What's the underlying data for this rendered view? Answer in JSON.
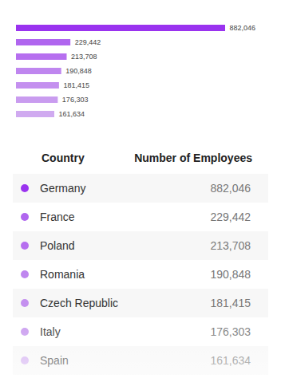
{
  "chart_data": {
    "type": "bar",
    "orientation": "horizontal",
    "categories": [
      "Germany",
      "France",
      "Poland",
      "Romania",
      "Czech Republic",
      "Italy",
      "Spain"
    ],
    "values": [
      882046,
      229442,
      213708,
      190848,
      181415,
      176303,
      161634
    ],
    "value_labels": [
      "882,046",
      "229,442",
      "213,708",
      "190,848",
      "181,415",
      "176,303",
      "161,634"
    ],
    "colors": [
      "#9a33ef",
      "#b066ef",
      "#b66fef",
      "#bf86ef",
      "#c490ef",
      "#c99cef",
      "#d0aaf0"
    ],
    "xlim": [
      0,
      882046
    ],
    "data_labels": true,
    "tick_labels": false
  },
  "table": {
    "header": [
      "Country",
      "Number of Employees"
    ]
  }
}
